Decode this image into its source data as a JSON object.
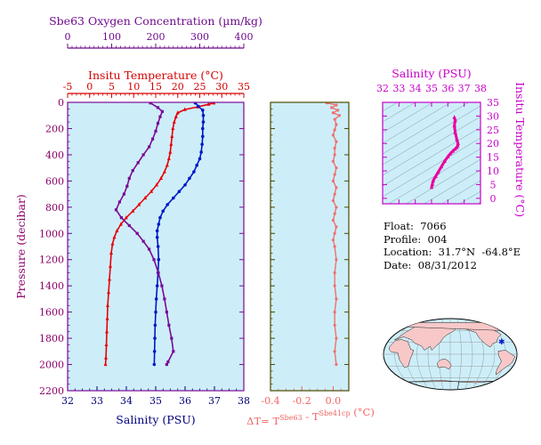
{
  "info": {
    "float": "Float:  7066",
    "profile": "Profile:  004",
    "location": "Location:  31.7°N  -64.8°E",
    "date": "Date:  08/31/2012"
  },
  "colors": {
    "panel_bg": "#cdeef8",
    "temperature": "#e8000a",
    "salinity": "#0018c8",
    "oxygen": "#7a0a96",
    "dT": "#f07070",
    "ts": "#e800a0",
    "axis_oxygen": "#6e0a8c",
    "axis_temp": "#d40000",
    "axis_sal": "#00007a",
    "axis_dT": "#f06464",
    "axis_pressure": "#8b0068",
    "axis_ts": "#c800c8",
    "dT_frame": "#4a4a00",
    "map_land": "#f8c8c8",
    "map_ocean": "#cdeef8",
    "float_marker": "#0018c8"
  },
  "chart_data": [
    {
      "type": "line",
      "panel": "profiles",
      "y_axis": {
        "label": "Pressure (decibar)",
        "range": [
          0,
          2200
        ],
        "ticks": [
          "0",
          "200",
          "400",
          "600",
          "800",
          "1000",
          "1200",
          "1400",
          "1600",
          "1800",
          "2000",
          "2200"
        ]
      },
      "axes": {
        "oxygen": {
          "title": "Sbe63 Oxygen Concentration (µm/kg)",
          "range": [
            0,
            400
          ],
          "ticks": [
            "0",
            "100",
            "200",
            "300",
            "400"
          ]
        },
        "temperature": {
          "title": "Insitu Temperature (°C)",
          "range": [
            -5,
            35
          ],
          "ticks": [
            "-5",
            "0",
            "5",
            "10",
            "15",
            "20",
            "25",
            "30",
            "35"
          ]
        },
        "salinity": {
          "title": "Salinity (PSU)",
          "range": [
            32,
            38
          ],
          "ticks": [
            "32",
            "33",
            "34",
            "35",
            "36",
            "37",
            "38"
          ]
        }
      },
      "series": [
        {
          "key": "temperature",
          "marker": "triangle",
          "points": [
            [
              28.2,
              5
            ],
            [
              27.0,
              15
            ],
            [
              24.5,
              35
            ],
            [
              21.6,
              55
            ],
            [
              20.0,
              80
            ],
            [
              19.6,
              110
            ],
            [
              19.2,
              150
            ],
            [
              18.9,
              200
            ],
            [
              18.7,
              260
            ],
            [
              18.5,
              320
            ],
            [
              18.3,
              380
            ],
            [
              18.0,
              430
            ],
            [
              17.6,
              480
            ],
            [
              17.0,
              530
            ],
            [
              16.2,
              580
            ],
            [
              15.2,
              630
            ],
            [
              14.0,
              680
            ],
            [
              12.6,
              730
            ],
            [
              11.2,
              780
            ],
            [
              9.8,
              830
            ],
            [
              8.3,
              880
            ],
            [
              7.1,
              930
            ],
            [
              6.2,
              980
            ],
            [
              5.6,
              1030
            ],
            [
              5.2,
              1080
            ],
            [
              4.9,
              1150
            ],
            [
              4.7,
              1250
            ],
            [
              4.5,
              1350
            ],
            [
              4.3,
              1450
            ],
            [
              4.1,
              1550
            ],
            [
              4.0,
              1650
            ],
            [
              3.9,
              1750
            ],
            [
              3.8,
              1850
            ],
            [
              3.7,
              1950
            ],
            [
              3.6,
              2000
            ]
          ]
        },
        {
          "key": "salinity",
          "marker": "circle",
          "points": [
            [
              36.35,
              5
            ],
            [
              36.45,
              30
            ],
            [
              36.6,
              60
            ],
            [
              36.62,
              100
            ],
            [
              36.62,
              150
            ],
            [
              36.6,
              200
            ],
            [
              36.6,
              260
            ],
            [
              36.58,
              320
            ],
            [
              36.55,
              380
            ],
            [
              36.5,
              430
            ],
            [
              36.4,
              480
            ],
            [
              36.3,
              530
            ],
            [
              36.15,
              580
            ],
            [
              36.0,
              630
            ],
            [
              35.8,
              680
            ],
            [
              35.6,
              730
            ],
            [
              35.4,
              780
            ],
            [
              35.25,
              830
            ],
            [
              35.15,
              880
            ],
            [
              35.1,
              930
            ],
            [
              35.05,
              980
            ],
            [
              35.05,
              1030
            ],
            [
              35.08,
              1100
            ],
            [
              35.1,
              1200
            ],
            [
              35.08,
              1300
            ],
            [
              35.05,
              1400
            ],
            [
              35.02,
              1500
            ],
            [
              35.0,
              1600
            ],
            [
              34.98,
              1700
            ],
            [
              34.97,
              1800
            ],
            [
              34.96,
              1900
            ],
            [
              34.95,
              2000
            ]
          ]
        },
        {
          "key": "oxygen",
          "marker": "square",
          "points": [
            [
              188,
              5
            ],
            [
              205,
              40
            ],
            [
              215,
              70
            ],
            [
              210,
              110
            ],
            [
              205,
              160
            ],
            [
              200,
              220
            ],
            [
              193,
              280
            ],
            [
              185,
              340
            ],
            [
              172,
              400
            ],
            [
              160,
              460
            ],
            [
              148,
              520
            ],
            [
              140,
              580
            ],
            [
              135,
              640
            ],
            [
              128,
              700
            ],
            [
              118,
              760
            ],
            [
              110,
              820
            ],
            [
              122,
              880
            ],
            [
              140,
              940
            ],
            [
              158,
              1000
            ],
            [
              172,
              1060
            ],
            [
              185,
              1120
            ],
            [
              196,
              1200
            ],
            [
              206,
              1300
            ],
            [
              214,
              1400
            ],
            [
              220,
              1500
            ],
            [
              225,
              1600
            ],
            [
              230,
              1700
            ],
            [
              236,
              1800
            ],
            [
              240,
              1900
            ],
            [
              228,
              1980
            ],
            [
              225,
              2000
            ]
          ]
        }
      ]
    },
    {
      "type": "line",
      "panel": "dT",
      "x_axis": {
        "title": "ΔT= T^Sbe63 - T^Sbe41cp (°C)",
        "range": [
          -0.4,
          0.1
        ],
        "ticks": [
          "-0.4",
          "-0.2",
          "0.0"
        ]
      },
      "y_axis": {
        "range": [
          0,
          2200
        ]
      },
      "series": [
        {
          "key": "dT",
          "marker": "circle",
          "points": [
            [
              -0.04,
              5
            ],
            [
              0.02,
              20
            ],
            [
              -0.01,
              40
            ],
            [
              0.03,
              60
            ],
            [
              0.0,
              80
            ],
            [
              0.04,
              100
            ],
            [
              0.01,
              130
            ],
            [
              0.02,
              170
            ],
            [
              0.01,
              210
            ],
            [
              0.0,
              250
            ],
            [
              0.02,
              300
            ],
            [
              0.01,
              350
            ],
            [
              0.01,
              400
            ],
            [
              0.0,
              450
            ],
            [
              0.02,
              500
            ],
            [
              0.01,
              550
            ],
            [
              0.0,
              600
            ],
            [
              0.02,
              650
            ],
            [
              0.01,
              700
            ],
            [
              0.0,
              750
            ],
            [
              0.02,
              800
            ],
            [
              0.01,
              850
            ],
            [
              0.0,
              900
            ],
            [
              0.02,
              950
            ],
            [
              0.01,
              1000
            ],
            [
              0.0,
              1050
            ],
            [
              0.01,
              1100
            ],
            [
              0.02,
              1200
            ],
            [
              0.01,
              1300
            ],
            [
              0.01,
              1400
            ],
            [
              0.02,
              1500
            ],
            [
              0.01,
              1600
            ],
            [
              0.01,
              1700
            ],
            [
              0.02,
              1800
            ],
            [
              0.01,
              1900
            ],
            [
              0.02,
              2000
            ]
          ]
        }
      ]
    },
    {
      "type": "scatter",
      "panel": "TS",
      "x_axis": {
        "title": "Salinity (PSU)",
        "range": [
          32,
          38
        ],
        "ticks": [
          "32",
          "33",
          "34",
          "35",
          "36",
          "37",
          "38"
        ]
      },
      "y_axis": {
        "title": "Insitu Temperature (°C)",
        "range": [
          -2,
          35
        ],
        "ticks": [
          "0",
          "5",
          "10",
          "15",
          "20",
          "25",
          "30",
          "35"
        ]
      },
      "series": [
        {
          "key": "ts",
          "marker": "triangle",
          "points": [
            [
              35.0,
              4.0
            ],
            [
              35.05,
              5.2
            ],
            [
              35.1,
              6.5
            ],
            [
              35.25,
              8.0
            ],
            [
              35.4,
              9.5
            ],
            [
              35.6,
              11.5
            ],
            [
              35.8,
              13.5
            ],
            [
              36.0,
              15.2
            ],
            [
              36.15,
              16.3
            ],
            [
              36.3,
              17.2
            ],
            [
              36.45,
              18.0
            ],
            [
              36.55,
              18.6
            ],
            [
              36.6,
              19.2
            ],
            [
              36.62,
              20.0
            ],
            [
              36.55,
              21.5
            ],
            [
              36.45,
              24.0
            ],
            [
              36.4,
              26.5
            ],
            [
              36.45,
              28.5
            ],
            [
              36.4,
              29.5
            ]
          ]
        }
      ]
    }
  ]
}
